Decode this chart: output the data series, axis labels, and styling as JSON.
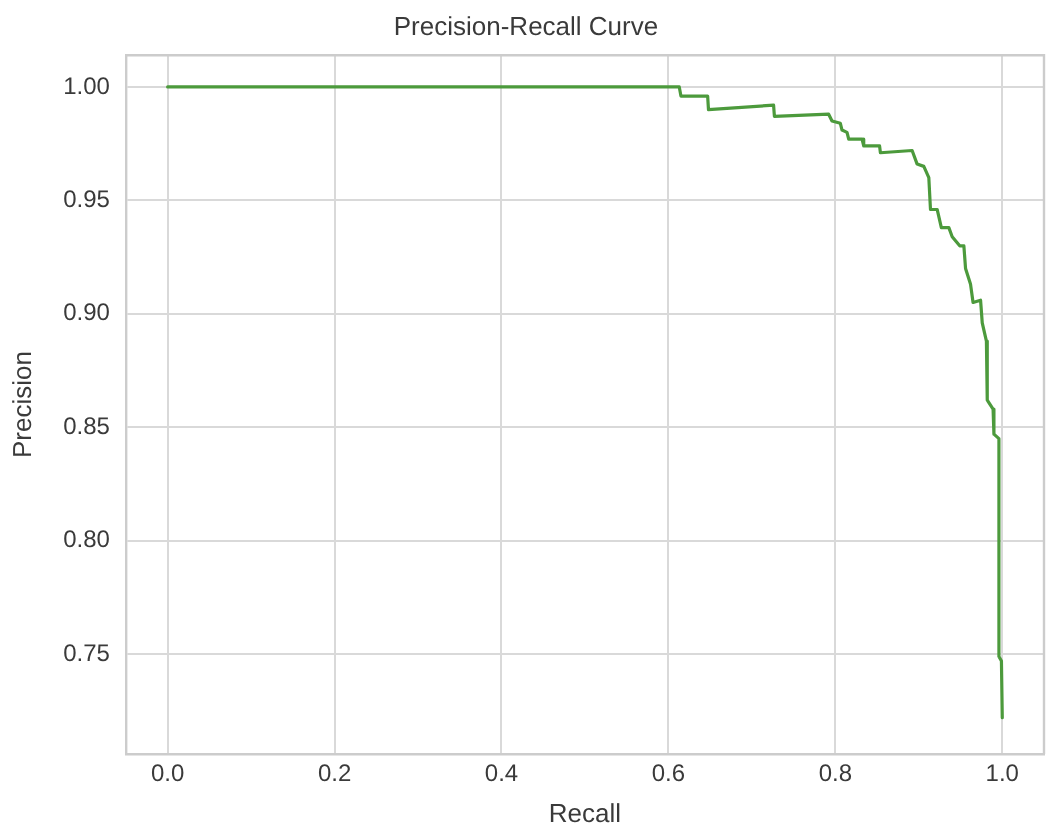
{
  "chart_data": {
    "type": "line",
    "title": "Precision-Recall Curve",
    "xlabel": "Recall",
    "ylabel": "Precision",
    "xlim": [
      -0.05,
      1.05
    ],
    "xticks": [
      {
        "value": 0,
        "label": "0.0"
      },
      {
        "value": 0.2,
        "label": "0.2"
      },
      {
        "value": 0.4,
        "label": "0.4"
      },
      {
        "value": 0.6,
        "label": "0.6"
      },
      {
        "value": 0.8,
        "label": "0.8"
      },
      {
        "value": 1,
        "label": "1.0"
      }
    ],
    "ylim": [
      0.706,
      1.014
    ],
    "yticks": [
      {
        "value": 0.75,
        "label": "0.75"
      },
      {
        "value": 0.8,
        "label": "0.80"
      },
      {
        "value": 0.85,
        "label": "0.85"
      },
      {
        "value": 0.9,
        "label": "0.90"
      },
      {
        "value": 0.95,
        "label": "0.95"
      },
      {
        "value": 1,
        "label": "1.00"
      }
    ],
    "grid": true,
    "legend": false,
    "marker": "none",
    "line_style": "solid",
    "series": [
      {
        "color": "#4c9a3c",
        "x": [
          0,
          0.613,
          0.615,
          0.647,
          0.648,
          0.726,
          0.727,
          0.792,
          0.796,
          0.806,
          0.808,
          0.814,
          0.816,
          0.832,
          0.834,
          0.853,
          0.854,
          0.892,
          0.898,
          0.906,
          0.912,
          0.914,
          0.922,
          0.927,
          0.936,
          0.94,
          0.949,
          0.954,
          0.956,
          0.962,
          0.965,
          0.974,
          0.976,
          0.981,
          0.982,
          0.989,
          0.99,
          0.996,
          0.996,
          0.999,
          1.0
        ],
        "values": [
          1.0,
          1.0,
          0.996,
          0.996,
          0.99,
          0.992,
          0.987,
          0.988,
          0.985,
          0.984,
          0.981,
          0.98,
          0.977,
          0.977,
          0.974,
          0.974,
          0.971,
          0.972,
          0.966,
          0.965,
          0.96,
          0.946,
          0.946,
          0.938,
          0.938,
          0.934,
          0.93,
          0.93,
          0.92,
          0.913,
          0.905,
          0.906,
          0.896,
          0.888,
          0.862,
          0.858,
          0.847,
          0.845,
          0.749,
          0.747,
          0.722
        ]
      }
    ]
  }
}
